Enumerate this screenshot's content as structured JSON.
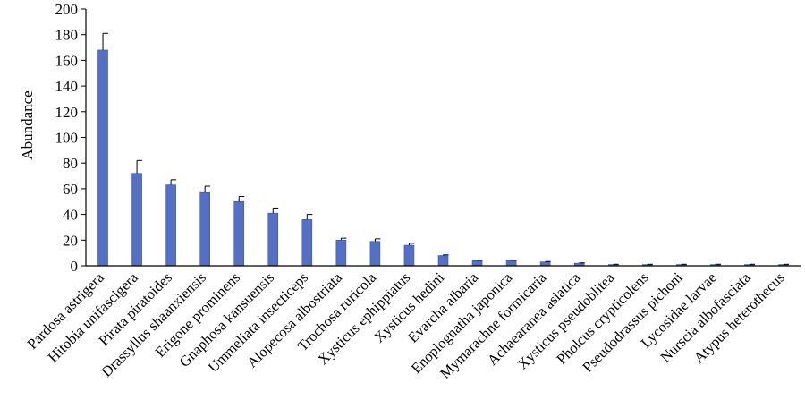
{
  "colors": {
    "bar": "#5470c6",
    "bar_stroke": "#3b55a8",
    "axis": "#000000",
    "error_bar": "#000000"
  },
  "chart_data": {
    "type": "bar",
    "title": "",
    "xlabel": "",
    "ylabel": "Abundance",
    "ylim": [
      0,
      200
    ],
    "yticks": [
      0,
      20,
      40,
      60,
      80,
      100,
      120,
      140,
      160,
      180,
      200
    ],
    "grid": false,
    "legend": "none",
    "categories": [
      "Pardosa astrigera",
      "Hitobia unifascigera",
      "Pirata piratoides",
      "Drassyllus shaanxiensis",
      "Erigone prominens",
      "Gnaphosa kansuensis",
      "Ummeliata insecticeps",
      "Alopecosa albostriata",
      "Trochosa ruricola",
      "Xysticus ephippiatus",
      "Xysticus hedini",
      "Evarcha albaria",
      "Enoplognatha japonica",
      "Mymarachne formicaria",
      "Achaearanea asiatica",
      "Xysticus pseudoblitea",
      "Pholcus crypticolens",
      "Pseudodrassus pichoni",
      "Lycosidae larvae",
      "Nurscia albofasciata",
      "Atypus heterothecus"
    ],
    "values": [
      168,
      72,
      63,
      57,
      50,
      41,
      36,
      20,
      19,
      16,
      8,
      4,
      4,
      3,
      2,
      1,
      1,
      1,
      1,
      1,
      1
    ],
    "errors": [
      13,
      10,
      4,
      5,
      4,
      4,
      4,
      1.5,
      2,
      1.5,
      0.5,
      0.3,
      0.3,
      0.3,
      0.3,
      0.2,
      0.2,
      0.2,
      0.2,
      0.2,
      0.2
    ]
  }
}
